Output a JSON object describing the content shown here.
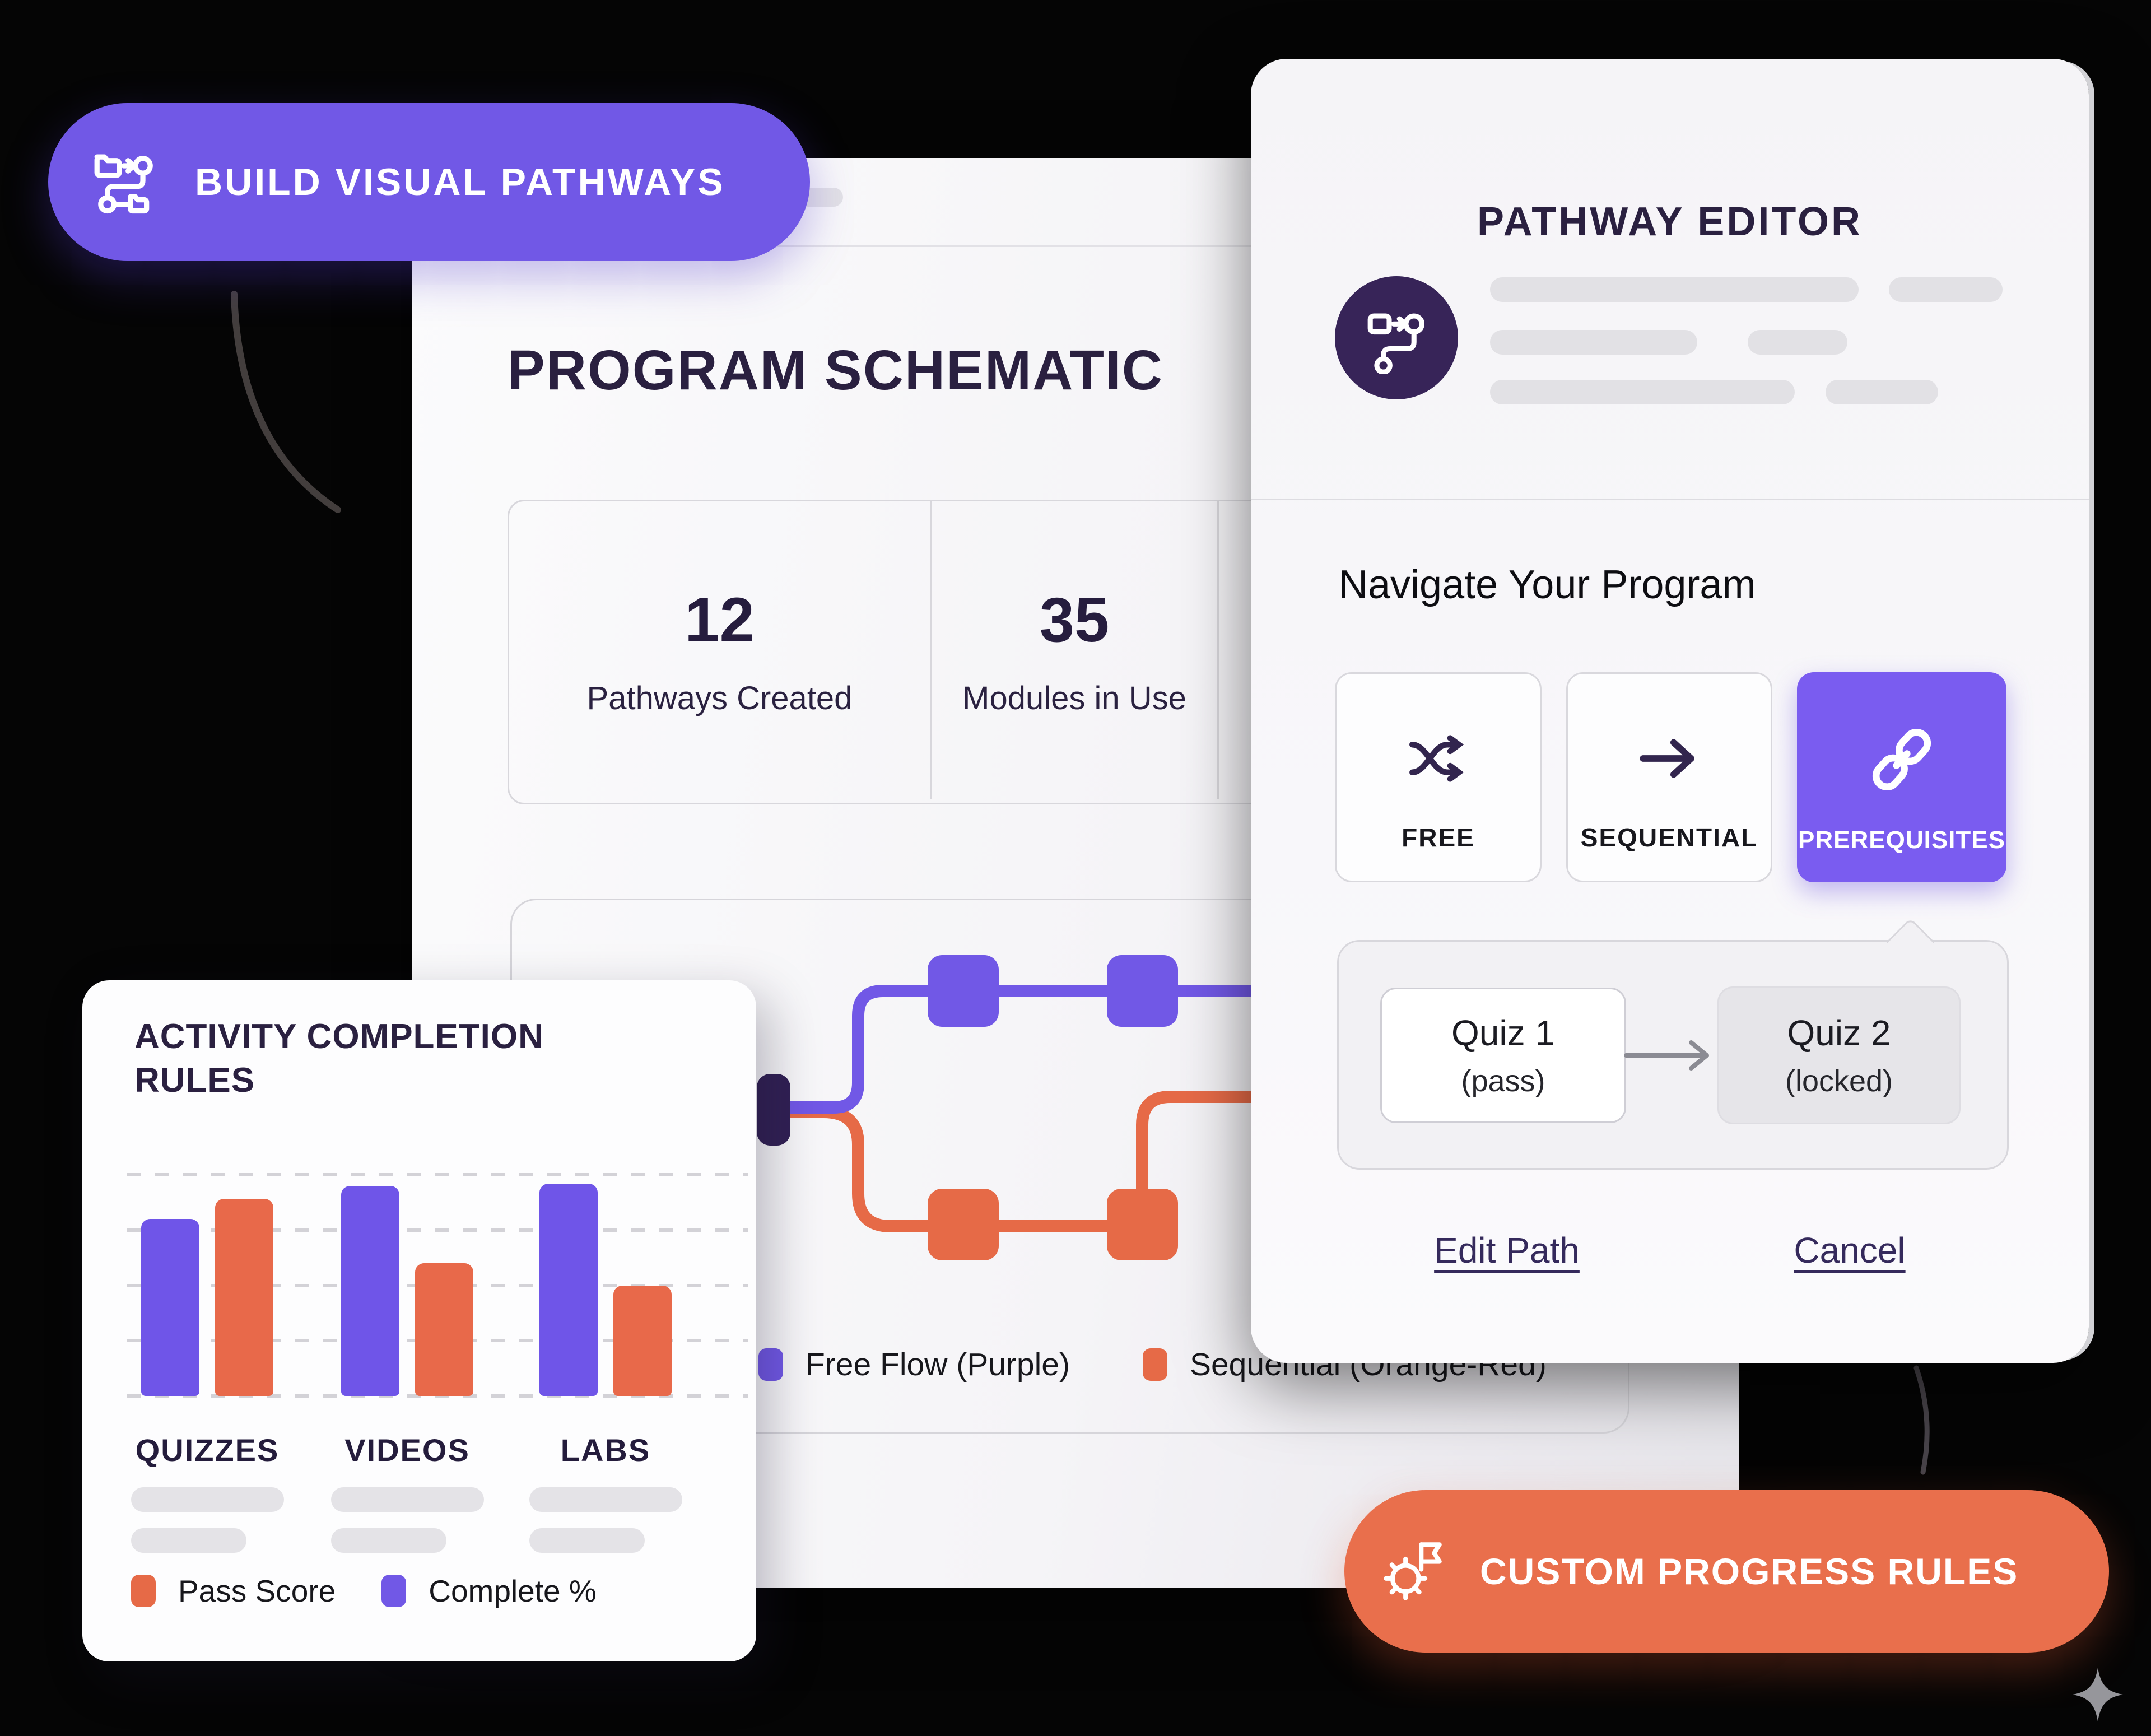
{
  "colors": {
    "purple": "#7158e6",
    "purple_bright": "#7a5cf0",
    "orange": "#e66a47",
    "orange_pill": "#e96f4c",
    "navy": "#2a2040",
    "start_node": "#312054",
    "editor_icon_bg": "#372458",
    "mode_icon": "#32254e",
    "link_text": "#352a5c"
  },
  "badge": {
    "label": "BUILD VISUAL PATHWAYS"
  },
  "main_card": {
    "title": "PROGRAM SCHEMATIC",
    "stats": [
      {
        "value": "12",
        "label": "Pathways Created"
      },
      {
        "value": "35",
        "label": "Modules in Use"
      }
    ],
    "diagram_legend": [
      {
        "label": "Free Flow (Purple)",
        "color": "#7158e6"
      },
      {
        "label": "Sequential (Orange-Red)",
        "color": "#e66a47"
      }
    ]
  },
  "editor": {
    "title": "PATHWAY EDITOR",
    "heading": "Navigate Your Program",
    "modes": [
      {
        "label": "FREE",
        "icon": "shuffle-icon",
        "selected": false
      },
      {
        "label": "SEQUENTIAL",
        "icon": "arrow-right-icon",
        "selected": false
      },
      {
        "label": "PREREQUISITES",
        "icon": "link-icon",
        "selected": true
      }
    ],
    "quiz_flow": {
      "from": {
        "title": "Quiz 1",
        "sub": "(pass)"
      },
      "to": {
        "title": "Quiz 2",
        "sub": "(locked)"
      }
    },
    "links": [
      {
        "label": "Edit Path"
      },
      {
        "label": "Cancel"
      }
    ]
  },
  "cta": {
    "label": "CUSTOM PROGRESS RULES"
  },
  "chart_data": {
    "type": "bar",
    "title_line1": "ACTIVITY COMPLETION",
    "title_line2": "RULES",
    "categories": [
      "QUIZZES",
      "VIDEOS",
      "LABS"
    ],
    "series": [
      {
        "name": "Complete %",
        "color": "#6f55e8",
        "values": [
          80,
          95,
          96
        ]
      },
      {
        "name": "Pass Score",
        "color": "#e8694a",
        "values": [
          89,
          60,
          50
        ]
      }
    ],
    "legend": [
      {
        "name": "Pass Score",
        "color": "#e8694a"
      },
      {
        "name": "Complete %",
        "color": "#6f55e8"
      }
    ],
    "ylim": [
      0,
      100
    ],
    "grid": "dashed-horizontal",
    "legend_position": "bottom"
  }
}
